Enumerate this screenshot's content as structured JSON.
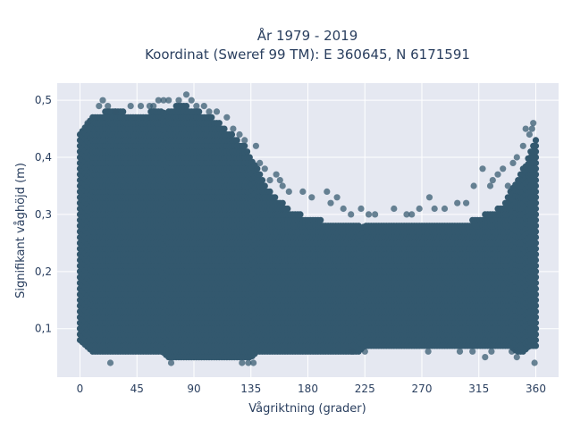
{
  "chart_data": {
    "type": "scatter",
    "title": "År 1979 - 2019",
    "subtitle": "Koordinat (Sweref 99 TM): E 360645, N 6171591",
    "xlabel": "Vågriktning (grader)",
    "ylabel": "Signifikant våghöjd (m)",
    "xlim": [
      -18,
      378
    ],
    "ylim": [
      0.015,
      0.53
    ],
    "xticks": [
      0,
      45,
      90,
      135,
      180,
      225,
      270,
      315,
      360
    ],
    "xtick_labels": [
      "0",
      "45",
      "90",
      "135",
      "180",
      "225",
      "270",
      "315",
      "360"
    ],
    "yticks": [
      0.1,
      0.2,
      0.3,
      0.4,
      0.5
    ],
    "ytick_labels": [
      "0,1",
      "0,2",
      "0,3",
      "0,4",
      "0,5"
    ],
    "grid": true,
    "legend": "none",
    "colors": {
      "marker": "#33586e",
      "plot_background": "#e5e8f1",
      "grid": "#ffffff",
      "text": "#2a3f5f"
    },
    "series": [
      {
        "dense_band": {
          "x": [
            0,
            5,
            10,
            15,
            20,
            25,
            30,
            35,
            40,
            45,
            50,
            55,
            60,
            65,
            70,
            75,
            80,
            85,
            90,
            95,
            100,
            105,
            110,
            115,
            120,
            125,
            130,
            135,
            140,
            145,
            150,
            155,
            160,
            165,
            170,
            175,
            180,
            185,
            190,
            195,
            200,
            205,
            210,
            215,
            220,
            225,
            230,
            235,
            240,
            245,
            250,
            255,
            260,
            265,
            270,
            275,
            280,
            285,
            290,
            295,
            300,
            305,
            310,
            315,
            320,
            325,
            330,
            335,
            340,
            345,
            350,
            355,
            360
          ],
          "y_min": [
            0.08,
            0.07,
            0.06,
            0.06,
            0.06,
            0.06,
            0.06,
            0.06,
            0.06,
            0.06,
            0.06,
            0.06,
            0.06,
            0.06,
            0.05,
            0.05,
            0.05,
            0.05,
            0.05,
            0.05,
            0.05,
            0.05,
            0.05,
            0.05,
            0.05,
            0.05,
            0.05,
            0.05,
            0.06,
            0.06,
            0.06,
            0.06,
            0.06,
            0.06,
            0.06,
            0.06,
            0.06,
            0.06,
            0.06,
            0.06,
            0.06,
            0.06,
            0.06,
            0.06,
            0.06,
            0.07,
            0.07,
            0.07,
            0.07,
            0.07,
            0.07,
            0.07,
            0.07,
            0.07,
            0.07,
            0.07,
            0.07,
            0.07,
            0.07,
            0.07,
            0.07,
            0.07,
            0.07,
            0.07,
            0.07,
            0.07,
            0.07,
            0.07,
            0.07,
            0.06,
            0.06,
            0.07,
            0.07
          ],
          "y_max": [
            0.44,
            0.46,
            0.47,
            0.47,
            0.48,
            0.48,
            0.48,
            0.48,
            0.47,
            0.47,
            0.47,
            0.48,
            0.48,
            0.48,
            0.48,
            0.49,
            0.49,
            0.49,
            0.48,
            0.48,
            0.47,
            0.47,
            0.46,
            0.45,
            0.44,
            0.43,
            0.42,
            0.4,
            0.38,
            0.36,
            0.34,
            0.33,
            0.32,
            0.31,
            0.3,
            0.3,
            0.29,
            0.29,
            0.29,
            0.28,
            0.28,
            0.28,
            0.28,
            0.28,
            0.28,
            0.28,
            0.28,
            0.28,
            0.28,
            0.28,
            0.28,
            0.28,
            0.28,
            0.28,
            0.28,
            0.28,
            0.28,
            0.28,
            0.28,
            0.28,
            0.28,
            0.28,
            0.29,
            0.29,
            0.3,
            0.3,
            0.31,
            0.32,
            0.34,
            0.36,
            0.38,
            0.41,
            0.43
          ]
        },
        "outliers": [
          {
            "x": 18,
            "y": 0.5
          },
          {
            "x": 22,
            "y": 0.49
          },
          {
            "x": 24,
            "y": 0.04
          },
          {
            "x": 55,
            "y": 0.49
          },
          {
            "x": 58,
            "y": 0.49
          },
          {
            "x": 62,
            "y": 0.5
          },
          {
            "x": 66,
            "y": 0.5
          },
          {
            "x": 70,
            "y": 0.5
          },
          {
            "x": 72,
            "y": 0.04
          },
          {
            "x": 78,
            "y": 0.5
          },
          {
            "x": 84,
            "y": 0.51
          },
          {
            "x": 88,
            "y": 0.5
          },
          {
            "x": 92,
            "y": 0.49
          },
          {
            "x": 98,
            "y": 0.49
          },
          {
            "x": 102,
            "y": 0.48
          },
          {
            "x": 126,
            "y": 0.44
          },
          {
            "x": 128,
            "y": 0.04
          },
          {
            "x": 133,
            "y": 0.04
          },
          {
            "x": 137,
            "y": 0.04
          },
          {
            "x": 139,
            "y": 0.42
          },
          {
            "x": 142,
            "y": 0.39
          },
          {
            "x": 146,
            "y": 0.38
          },
          {
            "x": 150,
            "y": 0.36
          },
          {
            "x": 155,
            "y": 0.37
          },
          {
            "x": 158,
            "y": 0.36
          },
          {
            "x": 160,
            "y": 0.35
          },
          {
            "x": 165,
            "y": 0.34
          },
          {
            "x": 176,
            "y": 0.34
          },
          {
            "x": 183,
            "y": 0.33
          },
          {
            "x": 195,
            "y": 0.34
          },
          {
            "x": 198,
            "y": 0.32
          },
          {
            "x": 203,
            "y": 0.33
          },
          {
            "x": 208,
            "y": 0.31
          },
          {
            "x": 214,
            "y": 0.3
          },
          {
            "x": 222,
            "y": 0.31
          },
          {
            "x": 228,
            "y": 0.3
          },
          {
            "x": 233,
            "y": 0.3
          },
          {
            "x": 248,
            "y": 0.31
          },
          {
            "x": 258,
            "y": 0.3
          },
          {
            "x": 262,
            "y": 0.3
          },
          {
            "x": 268,
            "y": 0.31
          },
          {
            "x": 276,
            "y": 0.33
          },
          {
            "x": 280,
            "y": 0.31
          },
          {
            "x": 288,
            "y": 0.31
          },
          {
            "x": 298,
            "y": 0.32
          },
          {
            "x": 305,
            "y": 0.32
          },
          {
            "x": 311,
            "y": 0.35
          },
          {
            "x": 318,
            "y": 0.38
          },
          {
            "x": 320,
            "y": 0.05
          },
          {
            "x": 324,
            "y": 0.35
          },
          {
            "x": 326,
            "y": 0.36
          },
          {
            "x": 330,
            "y": 0.37
          },
          {
            "x": 334,
            "y": 0.38
          },
          {
            "x": 338,
            "y": 0.35
          },
          {
            "x": 341,
            "y": 0.06
          },
          {
            "x": 342,
            "y": 0.39
          },
          {
            "x": 345,
            "y": 0.4
          },
          {
            "x": 350,
            "y": 0.42
          },
          {
            "x": 352,
            "y": 0.45
          },
          {
            "x": 355,
            "y": 0.44
          },
          {
            "x": 357,
            "y": 0.45
          },
          {
            "x": 358,
            "y": 0.46
          },
          {
            "x": 359,
            "y": 0.04
          },
          {
            "x": 6,
            "y": 0.46
          },
          {
            "x": 15,
            "y": 0.49
          },
          {
            "x": 28,
            "y": 0.48
          },
          {
            "x": 40,
            "y": 0.49
          },
          {
            "x": 48,
            "y": 0.49
          },
          {
            "x": 108,
            "y": 0.48
          },
          {
            "x": 116,
            "y": 0.47
          },
          {
            "x": 121,
            "y": 0.45
          },
          {
            "x": 130,
            "y": 0.43
          },
          {
            "x": 215,
            "y": 0.06
          },
          {
            "x": 225,
            "y": 0.06
          },
          {
            "x": 275,
            "y": 0.06
          },
          {
            "x": 300,
            "y": 0.06
          },
          {
            "x": 310,
            "y": 0.06
          },
          {
            "x": 325,
            "y": 0.06
          },
          {
            "x": 345,
            "y": 0.05
          }
        ]
      }
    ]
  }
}
